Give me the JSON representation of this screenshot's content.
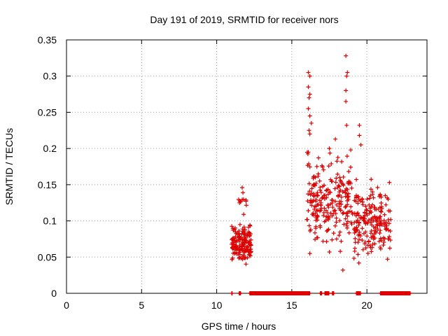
{
  "chart_data": {
    "type": "scatter",
    "title": "Day 191 of 2019, SRMTID for receiver nors",
    "xlabel": "GPS time / hours",
    "ylabel": "SRMTID / TECUs",
    "xlim": [
      0,
      24
    ],
    "ylim": [
      0,
      0.35
    ],
    "xticks": [
      0,
      5,
      10,
      15,
      20
    ],
    "yticks": [
      0,
      0.05,
      0.1,
      0.15,
      0.2,
      0.25,
      0.3,
      0.35
    ],
    "xtick_labels": [
      "0",
      "5",
      "10",
      "15",
      "20"
    ],
    "ytick_labels": [
      "0",
      "0.05",
      "0.1",
      "0.15",
      "0.2",
      "0.25",
      "0.3",
      "0.35"
    ],
    "grid": true,
    "marker": "+",
    "color": "#dd0000",
    "series": [
      {
        "name": "SRMTID",
        "clusters": [
          {
            "x_range": [
              11.0,
              12.3
            ],
            "y_range": [
              0.035,
              0.105
            ],
            "count": 160
          },
          {
            "x_range": [
              11.4,
              12.0
            ],
            "y_range": [
              0.1,
              0.15
            ],
            "count": 12
          },
          {
            "x_range": [
              16.0,
              19.0
            ],
            "y_range": [
              0.05,
              0.21
            ],
            "count": 230
          },
          {
            "x_range": [
              19.0,
              21.0
            ],
            "y_range": [
              0.035,
              0.17
            ],
            "count": 150
          },
          {
            "x_range": [
              20.8,
              21.6
            ],
            "y_range": [
              0.035,
              0.16
            ],
            "count": 45
          }
        ],
        "points": [
          [
            16.1,
            0.305
          ],
          [
            16.2,
            0.3
          ],
          [
            16.1,
            0.285
          ],
          [
            16.2,
            0.275
          ],
          [
            16.15,
            0.27
          ],
          [
            16.1,
            0.255
          ],
          [
            16.2,
            0.245
          ],
          [
            16.3,
            0.235
          ],
          [
            16.15,
            0.225
          ],
          [
            16.2,
            0.22
          ],
          [
            16.1,
            0.195
          ],
          [
            18.6,
            0.328
          ],
          [
            18.7,
            0.305
          ],
          [
            18.65,
            0.3
          ],
          [
            18.6,
            0.28
          ],
          [
            18.6,
            0.265
          ],
          [
            18.65,
            0.232
          ],
          [
            19.5,
            0.232
          ],
          [
            19.5,
            0.218
          ],
          [
            19.6,
            0.205
          ],
          [
            17.9,
            0.213
          ],
          [
            17.5,
            0.2
          ],
          [
            16.2,
            0.055
          ],
          [
            18.4,
            0.032
          ],
          [
            21.5,
            0.153
          ]
        ],
        "zeros": [
          [
            11.0,
            11.05
          ],
          [
            11.5,
            11.6
          ],
          [
            12.2,
            16.2
          ],
          [
            16.9,
            17.0
          ],
          [
            17.2,
            17.5
          ],
          [
            17.7,
            17.8
          ],
          [
            19.3,
            19.6
          ],
          [
            20.9,
            22.9
          ]
        ]
      }
    ]
  }
}
